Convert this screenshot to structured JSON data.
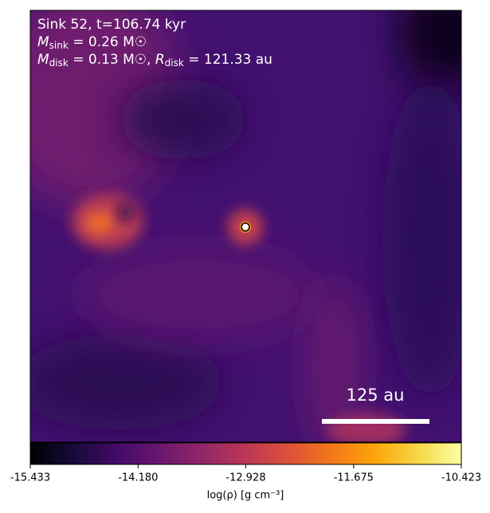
{
  "chart_data": {
    "type": "density-map",
    "annotations": [
      {
        "text": "Sink 52, t=106.74 kyr"
      },
      {
        "symbol": "M",
        "subscript": "sink",
        "text": " = 0.26 M☉"
      },
      {
        "symbol": "M",
        "subscript": "disk",
        "text": " = 0.13 M☉, ",
        "symbol2": "R",
        "subscript2": "disk",
        "text2": " = 121.33 au"
      }
    ],
    "scale_bar_label": "125 au",
    "colorbar": {
      "label": "log(ρ) [g cm⁻³]",
      "colormap": "inferno",
      "xlim": [
        -15.433,
        -10.423
      ],
      "xticks": [
        -15.433,
        {
          "value": -14.18,
          "label": "-14.180"
        },
        -12.928,
        -11.675,
        -10.423
      ]
    }
  }
}
